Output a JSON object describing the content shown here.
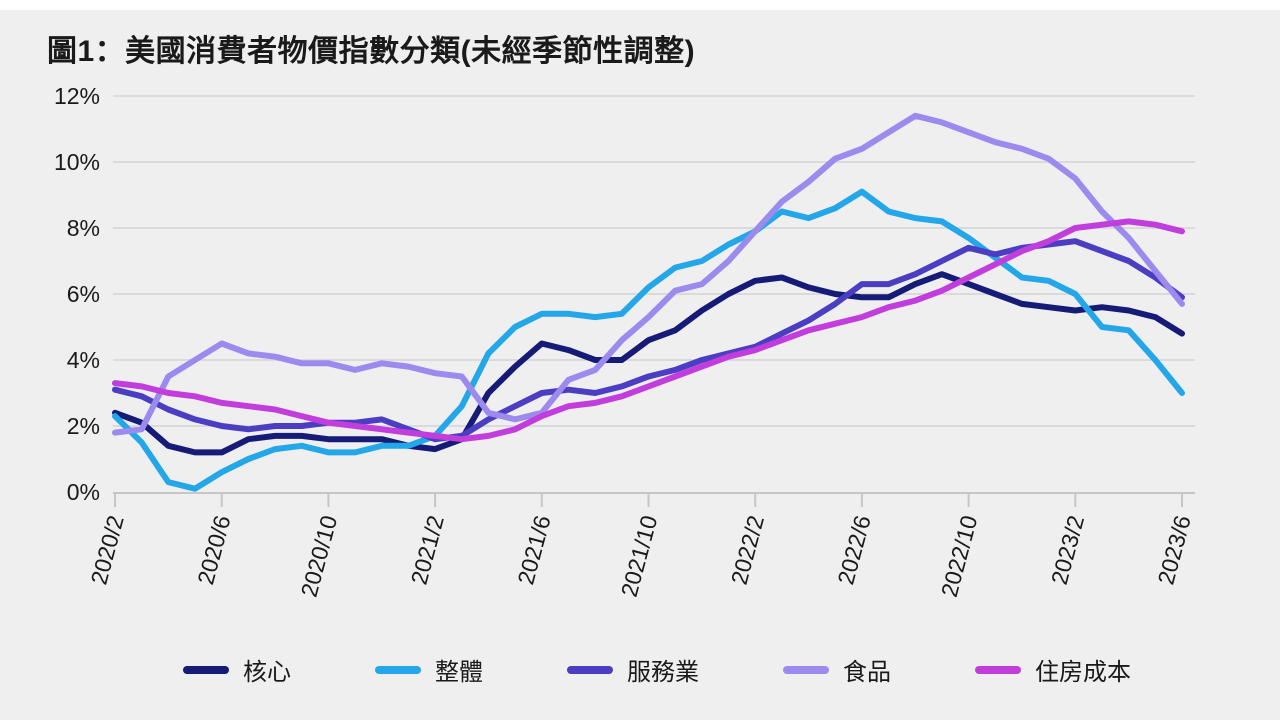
{
  "chart_data": {
    "type": "line",
    "title": "圖1：美國消費者物價指數分類(未經季節性調整)",
    "xlabel": "",
    "ylabel": "",
    "y_unit": "%",
    "ylim": [
      0,
      12
    ],
    "grid": "horizontal",
    "legend_position": "bottom",
    "y_ticks": [
      {
        "v": 0,
        "label": "0%"
      },
      {
        "v": 2,
        "label": "2%"
      },
      {
        "v": 4,
        "label": "4%"
      },
      {
        "v": 6,
        "label": "6%"
      },
      {
        "v": 8,
        "label": "8%"
      },
      {
        "v": 10,
        "label": "10%"
      },
      {
        "v": 12,
        "label": "12%"
      }
    ],
    "x_tick_every": 4,
    "x": [
      "2020/2",
      "2020/3",
      "2020/4",
      "2020/5",
      "2020/6",
      "2020/7",
      "2020/8",
      "2020/9",
      "2020/10",
      "2020/11",
      "2020/12",
      "2021/1",
      "2021/2",
      "2021/3",
      "2021/4",
      "2021/5",
      "2021/6",
      "2021/7",
      "2021/8",
      "2021/9",
      "2021/10",
      "2021/11",
      "2021/12",
      "2022/1",
      "2022/2",
      "2022/3",
      "2022/4",
      "2022/5",
      "2022/6",
      "2022/7",
      "2022/8",
      "2022/9",
      "2022/10",
      "2022/11",
      "2022/12",
      "2023/1",
      "2023/2",
      "2023/3",
      "2023/4",
      "2023/5",
      "2023/6"
    ],
    "x_tick_labels": [
      "2020/2",
      "2020/6",
      "2020/10",
      "2021/2",
      "2021/6",
      "2021/10",
      "2022/2",
      "2022/6",
      "2022/10",
      "2023/2",
      "2023/6"
    ],
    "series": [
      {
        "name": "核心",
        "color": "#151b77",
        "values": [
          2.4,
          2.1,
          1.4,
          1.2,
          1.2,
          1.6,
          1.7,
          1.7,
          1.6,
          1.6,
          1.6,
          1.4,
          1.3,
          1.6,
          3.0,
          3.8,
          4.5,
          4.3,
          4.0,
          4.0,
          4.6,
          4.9,
          5.5,
          6.0,
          6.4,
          6.5,
          6.2,
          6.0,
          5.9,
          5.9,
          6.3,
          6.6,
          6.3,
          6.0,
          5.7,
          5.6,
          5.5,
          5.6,
          5.5,
          5.3,
          4.8
        ]
      },
      {
        "name": "整體",
        "color": "#23a7e8",
        "values": [
          2.3,
          1.5,
          0.3,
          0.1,
          0.6,
          1.0,
          1.3,
          1.4,
          1.2,
          1.2,
          1.4,
          1.4,
          1.7,
          2.6,
          4.2,
          5.0,
          5.4,
          5.4,
          5.3,
          5.4,
          6.2,
          6.8,
          7.0,
          7.5,
          7.9,
          8.5,
          8.3,
          8.6,
          9.1,
          8.5,
          8.3,
          8.2,
          7.7,
          7.1,
          6.5,
          6.4,
          6.0,
          5.0,
          4.9,
          4.0,
          3.0
        ]
      },
      {
        "name": "服務業",
        "color": "#4b3ec3",
        "values": [
          3.1,
          2.9,
          2.5,
          2.2,
          2.0,
          1.9,
          2.0,
          2.0,
          2.1,
          2.1,
          2.2,
          1.9,
          1.6,
          1.7,
          2.2,
          2.6,
          3.0,
          3.1,
          3.0,
          3.2,
          3.5,
          3.7,
          4.0,
          4.2,
          4.4,
          4.8,
          5.2,
          5.7,
          6.3,
          6.3,
          6.6,
          7.0,
          7.4,
          7.2,
          7.4,
          7.5,
          7.6,
          7.3,
          7.0,
          6.5,
          5.9
        ]
      },
      {
        "name": "食品",
        "color": "#9c8aee",
        "values": [
          1.8,
          1.9,
          3.5,
          4.0,
          4.5,
          4.2,
          4.1,
          3.9,
          3.9,
          3.7,
          3.9,
          3.8,
          3.6,
          3.5,
          2.4,
          2.2,
          2.4,
          3.4,
          3.7,
          4.6,
          5.3,
          6.1,
          6.3,
          7.0,
          7.9,
          8.8,
          9.4,
          10.1,
          10.4,
          10.9,
          11.4,
          11.2,
          10.9,
          10.6,
          10.4,
          10.1,
          9.5,
          8.5,
          7.7,
          6.7,
          5.7
        ]
      },
      {
        "name": "住房成本",
        "color": "#c13edd",
        "values": [
          3.3,
          3.2,
          3.0,
          2.9,
          2.7,
          2.6,
          2.5,
          2.3,
          2.1,
          2.0,
          1.9,
          1.8,
          1.7,
          1.6,
          1.7,
          1.9,
          2.3,
          2.6,
          2.7,
          2.9,
          3.2,
          3.5,
          3.8,
          4.1,
          4.3,
          4.6,
          4.9,
          5.1,
          5.3,
          5.6,
          5.8,
          6.1,
          6.5,
          6.9,
          7.3,
          7.6,
          8.0,
          8.1,
          8.2,
          8.1,
          7.9
        ]
      }
    ],
    "colors": {
      "background": "#efeff0",
      "gridline": "#dadadc",
      "axis": "#c6c6c8",
      "text": "#1a1a1a"
    }
  }
}
